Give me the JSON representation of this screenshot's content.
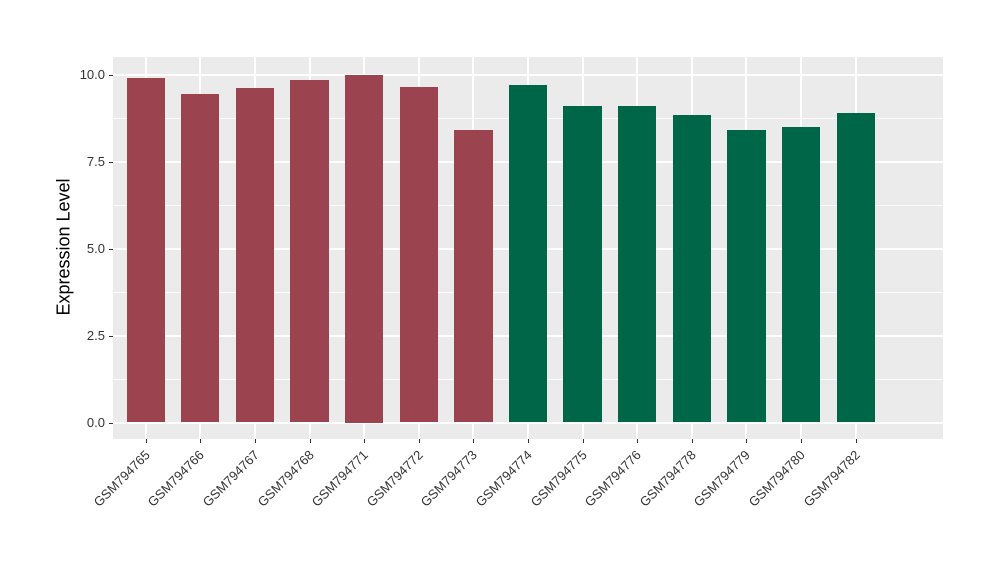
{
  "chart_data": {
    "type": "bar",
    "title": "",
    "xlabel": "",
    "ylabel": "Expression Level",
    "categories": [
      "GSM794765",
      "GSM794766",
      "GSM794767",
      "GSM794768",
      "GSM794771",
      "GSM794772",
      "GSM794773",
      "GSM794774",
      "GSM794775",
      "GSM794776",
      "GSM794778",
      "GSM794779",
      "GSM794780",
      "GSM794782"
    ],
    "values": [
      9.9,
      9.45,
      9.6,
      9.85,
      10.0,
      9.65,
      8.4,
      9.7,
      9.1,
      9.1,
      8.85,
      8.4,
      8.5,
      8.9
    ],
    "bar_groups": [
      0,
      0,
      0,
      0,
      0,
      0,
      0,
      1,
      1,
      1,
      1,
      1,
      1,
      1
    ],
    "group_colors": [
      "#9B4450",
      "#006648"
    ],
    "ylim": [
      0,
      10.5
    ],
    "yticks": [
      0.0,
      2.5,
      5.0,
      7.5,
      10.0
    ],
    "ytick_labels": [
      "0.0",
      "2.5",
      "5.0",
      "7.5",
      "10.0"
    ],
    "grid": true,
    "legend": false,
    "panel_bg": "#EBEBEB",
    "grid_color": "#FFFFFF",
    "bar_width_fraction": 0.7
  }
}
